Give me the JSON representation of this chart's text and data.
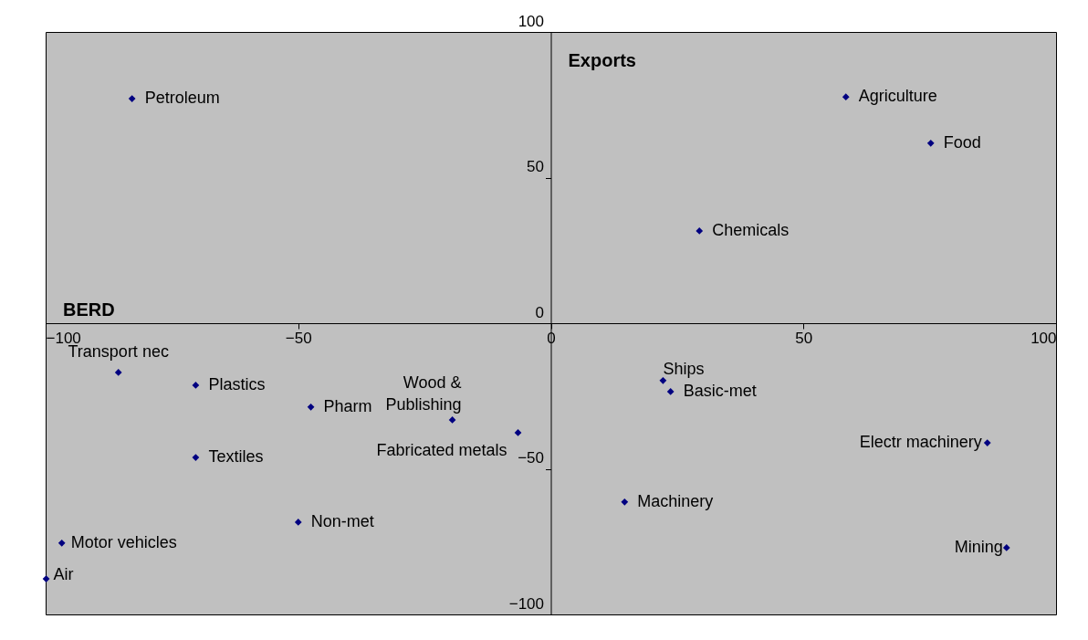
{
  "chart_data": {
    "type": "scatter",
    "xlabel": "BERD",
    "ylabel": "Exports",
    "series": [
      {
        "color": "#000080",
        "x": [
          -82.9,
          58.4,
          75.2,
          29.4,
          -85.6,
          -70.3,
          -47.5,
          -19.5,
          -6.5,
          -70.3,
          -50.0,
          -96.8,
          -99.9,
          22.2,
          23.7,
          14.6,
          86.4,
          90.2
        ],
        "values": [
          77.1,
          77.7,
          61.8,
          31.7,
          -16.9,
          -21.3,
          -28.8,
          -33.2,
          -37.6,
          -46.1,
          -68.3,
          -75.5,
          -87.8,
          -19.7,
          -23.5,
          -61.4,
          -41.1,
          -77.1
        ]
      }
    ],
    "annotations": [
      {
        "text": "Petroleum",
        "x": -82.9,
        "y": 77.1
      },
      {
        "text": "Agriculture",
        "x": 58.4,
        "y": 77.7
      },
      {
        "text": "Food",
        "x": 75.2,
        "y": 61.8
      },
      {
        "text": "Chemicals",
        "x": 29.4,
        "y": 31.7
      },
      {
        "text": "Transport nec",
        "x": -85.6,
        "y": -16.9
      },
      {
        "text": "Plastics",
        "x": -70.3,
        "y": -21.3
      },
      {
        "text": "Pharm",
        "x": -47.5,
        "y": -28.8
      },
      {
        "text": "Wood & Publishing",
        "x": -19.5,
        "y": -33.2
      },
      {
        "text": "Fabricated metals",
        "x": -6.5,
        "y": -37.6
      },
      {
        "text": "Textiles",
        "x": -70.3,
        "y": -46.1
      },
      {
        "text": "Non-met",
        "x": -50.0,
        "y": -68.3
      },
      {
        "text": "Motor vehicles",
        "x": -96.8,
        "y": -75.5
      },
      {
        "text": "Air",
        "x": -99.9,
        "y": -87.8
      },
      {
        "text": "Ships",
        "x": 22.2,
        "y": -19.7
      },
      {
        "text": "Basic-met",
        "x": 23.7,
        "y": -23.5
      },
      {
        "text": "Machinery",
        "x": 14.6,
        "y": -61.4
      },
      {
        "text": "Electr machinery",
        "x": 86.4,
        "y": -41.1
      },
      {
        "text": "Mining",
        "x": 90.2,
        "y": -77.1
      }
    ],
    "xlim": [
      -100,
      100
    ],
    "xticks": [
      -100,
      -50,
      0,
      50,
      100
    ],
    "ylim": [
      -100,
      100
    ],
    "yticks": [
      -100,
      -50,
      0,
      50,
      100
    ],
    "grid": false,
    "marker": "diamond"
  }
}
